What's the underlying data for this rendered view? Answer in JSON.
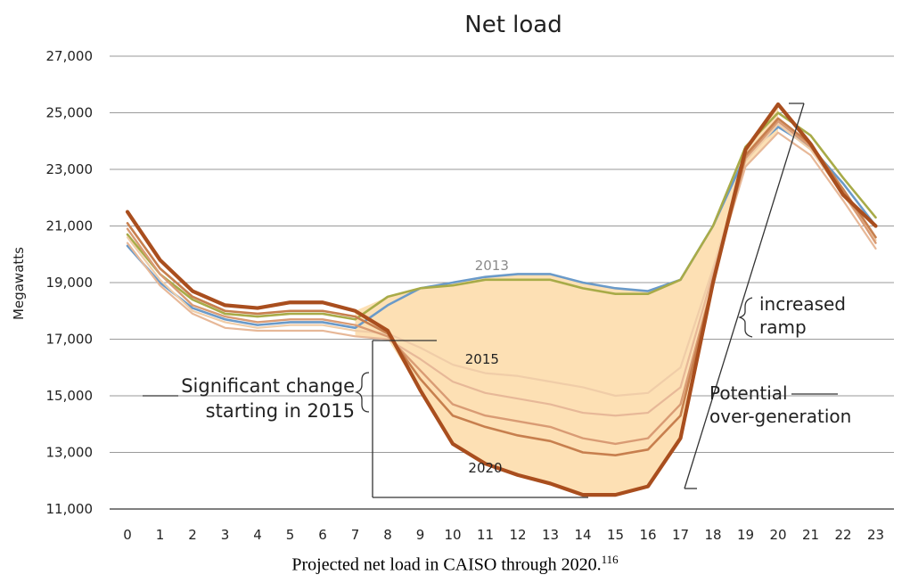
{
  "chart_data": {
    "type": "line",
    "title": "Net load",
    "ylabel": "Megawatts",
    "xlabel": "",
    "x": [
      0,
      1,
      2,
      3,
      4,
      5,
      6,
      7,
      8,
      9,
      10,
      11,
      12,
      13,
      14,
      15,
      16,
      17,
      18,
      19,
      20,
      21,
      22,
      23
    ],
    "x_tick_labels": [
      "0",
      "1",
      "2",
      "3",
      "4",
      "5",
      "6",
      "7",
      "8",
      "9",
      "10",
      "11",
      "12",
      "13",
      "14",
      "15",
      "16",
      "17",
      "18",
      "19",
      "20",
      "21",
      "22",
      "23"
    ],
    "y_ticks": [
      11000,
      13000,
      15000,
      17000,
      19000,
      21000,
      23000,
      25000,
      27000
    ],
    "y_tick_labels": [
      "11,000",
      "13,000",
      "15,000",
      "17,000",
      "19,000",
      "21,000",
      "23,000",
      "25,000",
      "27,000"
    ],
    "ylim": [
      11000,
      27000
    ],
    "grid": "horizontal",
    "series": [
      {
        "name": "2013",
        "color": "#6a9ac9",
        "values": [
          20300,
          19000,
          18100,
          17700,
          17500,
          17600,
          17600,
          17400,
          18200,
          18800,
          19000,
          19200,
          19300,
          19300,
          19000,
          18800,
          18700,
          19100,
          21000,
          23500,
          24500,
          23800,
          22500,
          21000
        ]
      },
      {
        "name": "",
        "color": "#a8ab48",
        "values": [
          20700,
          19300,
          18400,
          17900,
          17800,
          17900,
          17900,
          17700,
          18500,
          18800,
          18900,
          19100,
          19100,
          19100,
          18800,
          18600,
          18600,
          19100,
          21000,
          23800,
          25000,
          24200,
          22700,
          21300
        ]
      },
      {
        "name": "2015",
        "color": "#f0cda8",
        "values": [
          20600,
          19100,
          18000,
          17600,
          17400,
          17500,
          17500,
          17300,
          17200,
          16700,
          16100,
          15800,
          15700,
          15500,
          15300,
          15000,
          15100,
          16000,
          19500,
          23300,
          24600,
          23700,
          22100,
          20500
        ]
      },
      {
        "name": "",
        "color": "#e7b898",
        "values": [
          20400,
          18900,
          17900,
          17400,
          17300,
          17300,
          17300,
          17100,
          17000,
          16300,
          15500,
          15100,
          14900,
          14700,
          14400,
          14300,
          14400,
          15300,
          19300,
          23100,
          24300,
          23500,
          21900,
          20200
        ]
      },
      {
        "name": "",
        "color": "#d99b74",
        "values": [
          20900,
          19300,
          18200,
          17800,
          17600,
          17700,
          17700,
          17500,
          17100,
          15900,
          14700,
          14300,
          14100,
          13900,
          13500,
          13300,
          13500,
          14700,
          19000,
          23400,
          24700,
          23800,
          22200,
          20400
        ]
      },
      {
        "name": "",
        "color": "#c77f4e",
        "values": [
          21100,
          19500,
          18500,
          18000,
          17900,
          18000,
          18000,
          17800,
          17200,
          15600,
          14300,
          13900,
          13600,
          13400,
          13000,
          12900,
          13100,
          14300,
          19000,
          23500,
          24800,
          23900,
          22300,
          20600
        ]
      },
      {
        "name": "2020",
        "color": "#a94e1e",
        "values": [
          21500,
          19800,
          18700,
          18200,
          18100,
          18300,
          18300,
          18000,
          17300,
          15200,
          13300,
          12600,
          12200,
          11900,
          11500,
          11500,
          11800,
          13500,
          19000,
          23700,
          25300,
          23900,
          22100,
          21000
        ]
      }
    ],
    "annotations": [
      {
        "text": "Significant change"
      },
      {
        "text": "starting in 2015"
      },
      {
        "text": "increased"
      },
      {
        "text": "ramp"
      },
      {
        "text": "Potential"
      },
      {
        "text": "over-generation"
      }
    ],
    "fill_color": "#fde0b4"
  },
  "caption": {
    "text": "Projected net load in CAISO through 2020.",
    "superscript": "116"
  }
}
